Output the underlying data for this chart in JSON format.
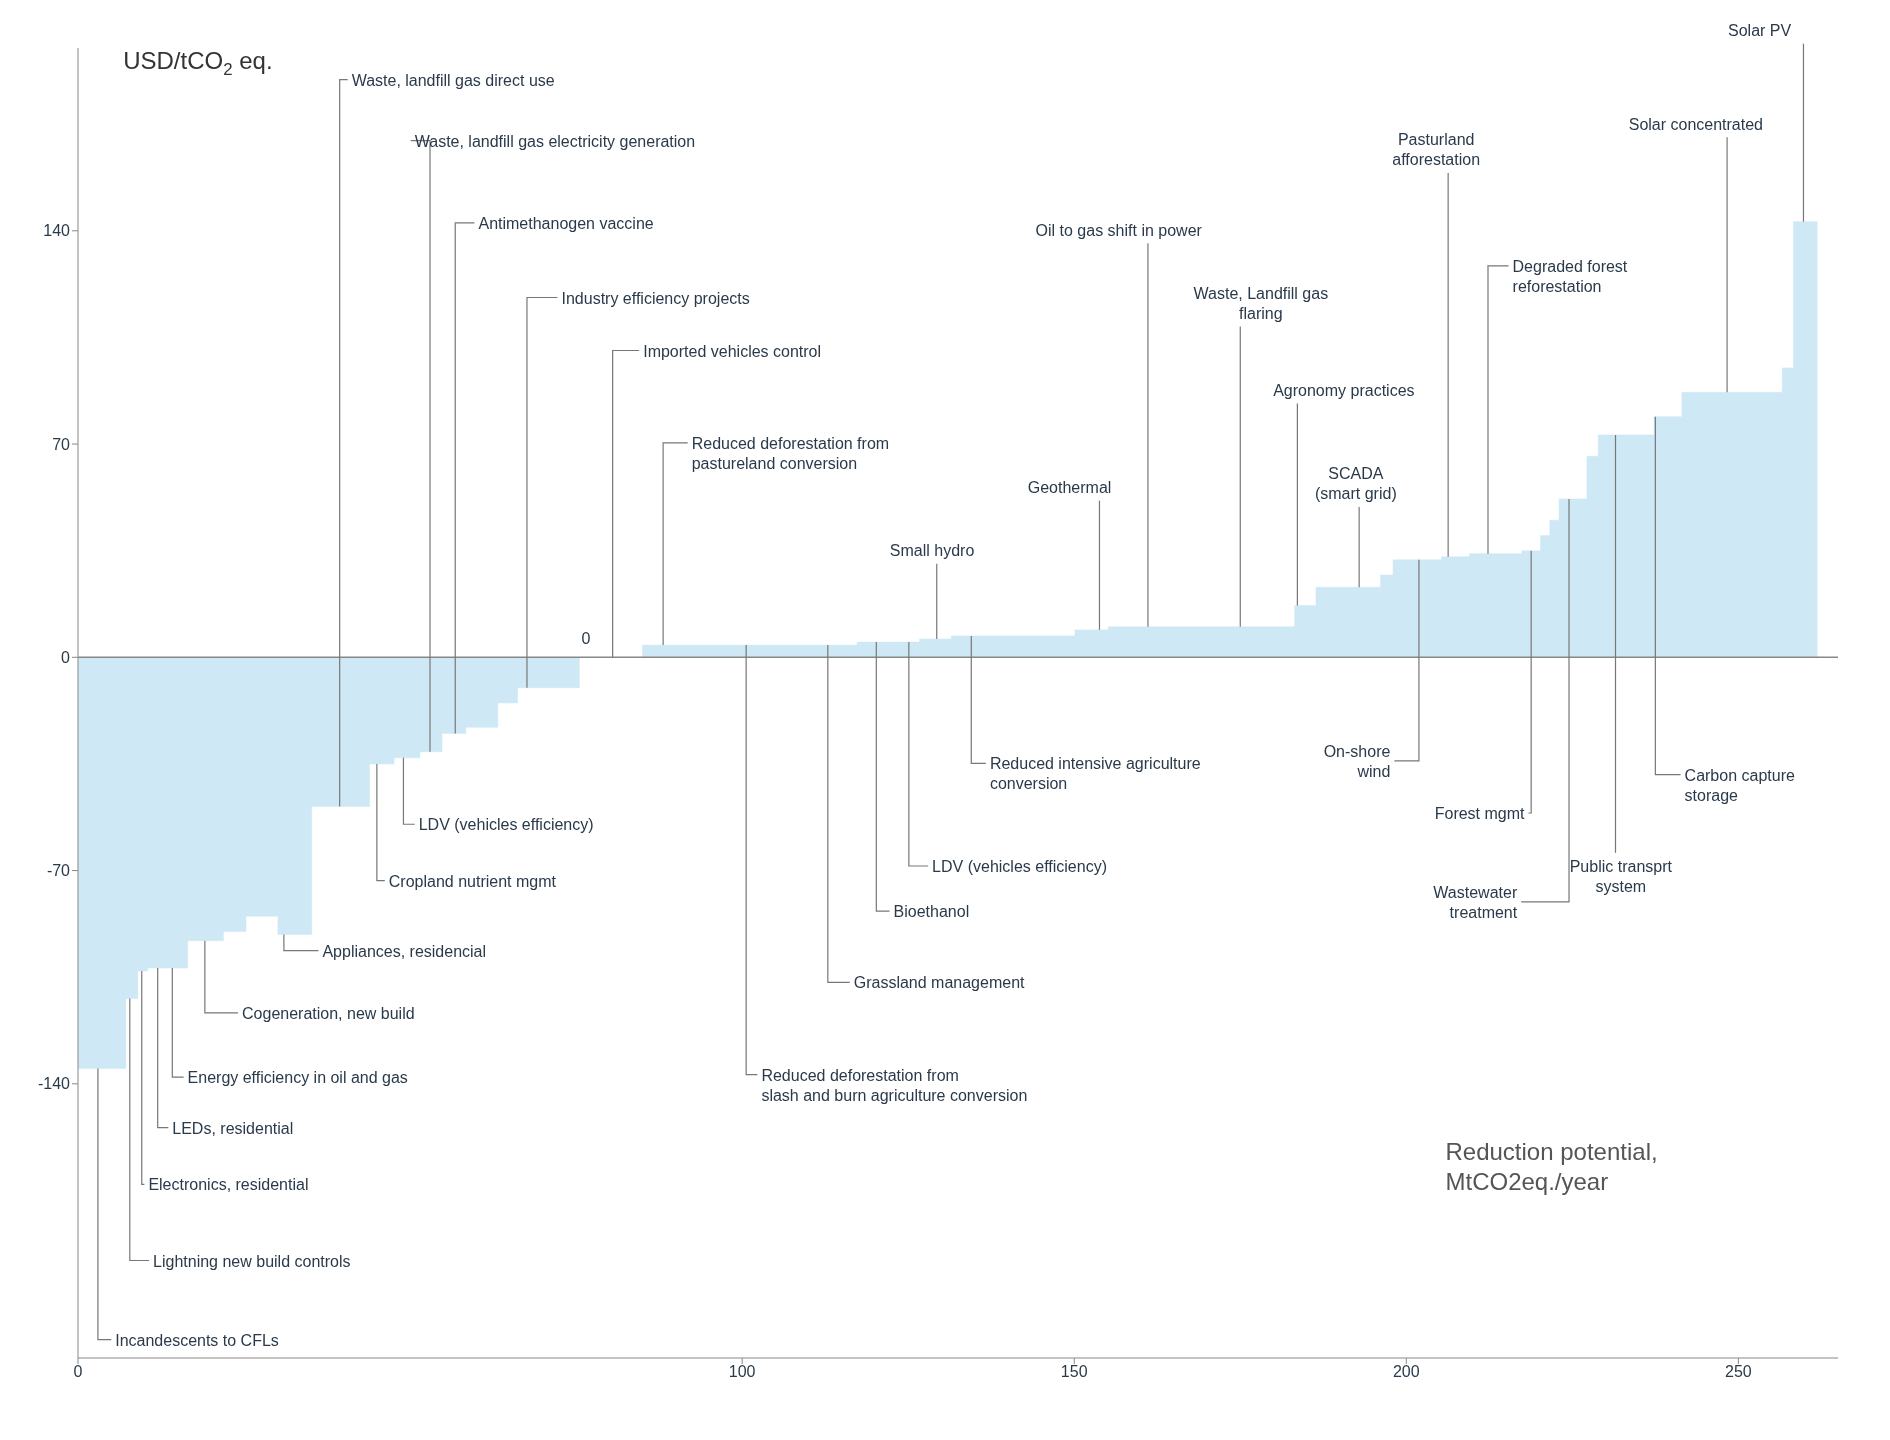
{
  "chart_data": {
    "type": "area",
    "xlabel": "Reduction potential, MtCO2eq./year",
    "ylabel": "USD/tCO$_{2}$ eq.",
    "x": [
      0,
      7.2,
      9.0,
      10.5,
      12.6,
      16.5,
      21.9,
      25.3,
      30.1,
      35.2,
      43.9,
      47.6,
      51.5,
      54.8,
      58.4,
      63.2,
      66.2,
      75.5,
      85,
      100.3,
      109.4,
      117.3,
      124.4,
      126.7,
      131.5,
      150.1,
      155.1,
      169.3,
      183.2,
      186.4,
      196.1,
      198,
      205.3,
      209.5,
      217.4,
      220.2,
      221.6,
      223,
      227.2,
      228.9,
      237.3,
      241.5,
      256.6,
      258.3,
      261.9
    ],
    "values": [
      -135,
      -112,
      -103,
      -102,
      -102,
      -93,
      -90,
      -85,
      -91,
      -49,
      -35,
      -33,
      -31,
      -25,
      -23,
      -15,
      -10,
      0,
      4,
      4,
      4,
      5,
      5,
      6,
      7,
      9,
      10,
      10,
      17,
      23,
      27,
      32,
      33,
      34,
      35,
      40,
      45,
      52,
      66,
      73,
      79,
      87,
      95,
      143,
      143
    ],
    "color": "#cfe8f5",
    "xlim": [
      0,
      265
    ],
    "ylim": [
      -230,
      200
    ],
    "xticks": [
      0,
      100,
      150,
      200,
      250
    ],
    "yticks": [
      -140,
      -70,
      0,
      70,
      140
    ],
    "ref_lines": [
      {
        "axis": "y",
        "value": 0,
        "color": "#888888"
      }
    ],
    "annotations": [
      {
        "text": "Waste, landfill gas direct use",
        "x": 39.4,
        "y": -49
      },
      {
        "text": "Waste, landfill gas electricity generation",
        "x": 53,
        "y": -31
      },
      {
        "text": "Antimethanogen vaccine",
        "x": 56.8,
        "y": -25
      },
      {
        "text": "Industry efficiency projects",
        "x": 67.6,
        "y": -10
      },
      {
        "text": "Imported vehicles control",
        "x": 80.5,
        "y": 0
      },
      {
        "text": "Reduced deforestation from pastureland conversion",
        "x": 88.1,
        "y": 4
      },
      {
        "text": "Small hydro",
        "x": 129.3,
        "y": 6
      },
      {
        "text": "Geothermal",
        "x": 153.8,
        "y": 9
      },
      {
        "text": "Oil to gas shift in power",
        "x": 161.1,
        "y": 10
      },
      {
        "text": "Waste, Landfill gas flaring",
        "x": 175,
        "y": 10
      },
      {
        "text": "Agronomy practices",
        "x": 183.6,
        "y": 17
      },
      {
        "text": "SCADA (smart grid)",
        "x": 192.9,
        "y": 23
      },
      {
        "text": "Pasturland afforestation",
        "x": 206.3,
        "y": 33
      },
      {
        "text": "Degraded forest reforestation",
        "x": 212.3,
        "y": 34
      },
      {
        "text": "Solar concentrated",
        "x": 248.3,
        "y": 87
      },
      {
        "text": "Solar PV",
        "x": 259.8,
        "y": 143
      },
      {
        "text": "Incandescents to CFLs",
        "x": 3,
        "y": -135
      },
      {
        "text": "Lightning new build controls",
        "x": 7.8,
        "y": -112
      },
      {
        "text": "Electronics, residential",
        "x": 9.6,
        "y": -103
      },
      {
        "text": "LEDs, residential",
        "x": 12,
        "y": -102
      },
      {
        "text": "Energy efficiency in oil and gas",
        "x": 14.2,
        "y": -102
      },
      {
        "text": "Cogeneration, new build",
        "x": 19.1,
        "y": -93
      },
      {
        "text": "Appliances, residencial",
        "x": 31,
        "y": -91
      },
      {
        "text": "Cropland nutrient mgmt",
        "x": 45,
        "y": -35
      },
      {
        "text": "LDV (vehicles efficiency)",
        "x": 49,
        "y": -33
      },
      {
        "text": "Reduced deforestation from slash and burn agriculture conversion",
        "x": 100.6,
        "y": 4
      },
      {
        "text": "Grassland management",
        "x": 112.9,
        "y": 4
      },
      {
        "text": "Bioethanol",
        "x": 120.2,
        "y": 5
      },
      {
        "text": "LDV (vehicles efficiency)",
        "x": 125.1,
        "y": 5
      },
      {
        "text": "Reduced intensive agriculture conversion",
        "x": 134.5,
        "y": 7
      },
      {
        "text": "On-shore wind",
        "x": 201.9,
        "y": 32
      },
      {
        "text": "Forest mgmt",
        "x": 218.8,
        "y": 35
      },
      {
        "text": "Wastewater treatment",
        "x": 224.5,
        "y": 52
      },
      {
        "text": "Public transprt system",
        "x": 231.5,
        "y": 73
      },
      {
        "text": "Carbon capture storage",
        "x": 237.5,
        "y": 79
      },
      "0"
    ]
  }
}
